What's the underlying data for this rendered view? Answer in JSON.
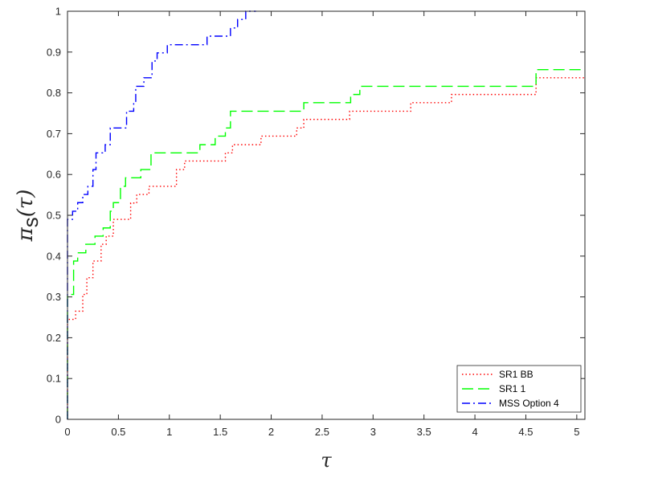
{
  "chart_data": {
    "type": "line",
    "step": true,
    "xlabel": "τ",
    "ylabel": {
      "main": "π",
      "sub": "s",
      "arg": "(τ)"
    },
    "xlim": [
      0,
      5.08
    ],
    "ylim": [
      0,
      1
    ],
    "xticks": [
      0,
      0.5,
      1,
      1.5,
      2,
      2.5,
      3,
      3.5,
      4,
      4.5,
      5
    ],
    "xtick_labels": [
      "0",
      "0.5",
      "1",
      "1.5",
      "2",
      "2.5",
      "3",
      "3.5",
      "4",
      "4.5",
      "5"
    ],
    "yticks": [
      0,
      0.1,
      0.2,
      0.3,
      0.4,
      0.5,
      0.6,
      0.7,
      0.8,
      0.9,
      1
    ],
    "ytick_labels": [
      "0",
      "0.1",
      "0.2",
      "0.3",
      "0.4",
      "0.5",
      "0.6",
      "0.7",
      "0.8",
      "0.9",
      "1"
    ],
    "grid": false,
    "legend_position": "bottom-right",
    "series": [
      {
        "name": "SR1 BB",
        "color": "#ff0000",
        "dash": "dotted",
        "x": [
          0,
          0.08,
          0.15,
          0.19,
          0.25,
          0.33,
          0.38,
          0.45,
          0.62,
          0.68,
          0.8,
          1.07,
          1.15,
          1.55,
          1.62,
          1.9,
          2.25,
          2.32,
          2.77,
          3.37,
          3.77,
          4.6,
          5.08
        ],
        "y": [
          0.245,
          0.265,
          0.306,
          0.347,
          0.388,
          0.429,
          0.449,
          0.49,
          0.53,
          0.551,
          0.571,
          0.612,
          0.633,
          0.653,
          0.673,
          0.694,
          0.714,
          0.735,
          0.755,
          0.776,
          0.796,
          0.837,
          0.837
        ]
      },
      {
        "name": "SR1 1",
        "color": "#00ff00",
        "dash": "dashed",
        "x": [
          0,
          0.06,
          0.1,
          0.18,
          0.27,
          0.35,
          0.42,
          0.45,
          0.52,
          0.57,
          0.72,
          0.82,
          1.05,
          1.3,
          1.45,
          1.55,
          1.6,
          2.32,
          2.78,
          2.87,
          4.6,
          5.08
        ],
        "y": [
          0.306,
          0.388,
          0.408,
          0.429,
          0.449,
          0.469,
          0.51,
          0.531,
          0.571,
          0.592,
          0.612,
          0.653,
          0.653,
          0.673,
          0.694,
          0.714,
          0.755,
          0.776,
          0.796,
          0.816,
          0.857,
          0.857
        ]
      },
      {
        "name": "MSS Option 4",
        "color": "#0000ff",
        "dash": "dashdot",
        "x": [
          0,
          0.05,
          0.1,
          0.15,
          0.2,
          0.25,
          0.28,
          0.37,
          0.42,
          0.53,
          0.58,
          0.65,
          0.67,
          0.75,
          0.83,
          0.88,
          0.98,
          1.37,
          1.6,
          1.67,
          1.75,
          1.85
        ],
        "y": [
          0.49,
          0.51,
          0.531,
          0.551,
          0.571,
          0.612,
          0.653,
          0.673,
          0.714,
          0.714,
          0.755,
          0.776,
          0.816,
          0.837,
          0.878,
          0.898,
          0.918,
          0.939,
          0.959,
          0.98,
          1.0,
          1.0
        ]
      }
    ]
  }
}
